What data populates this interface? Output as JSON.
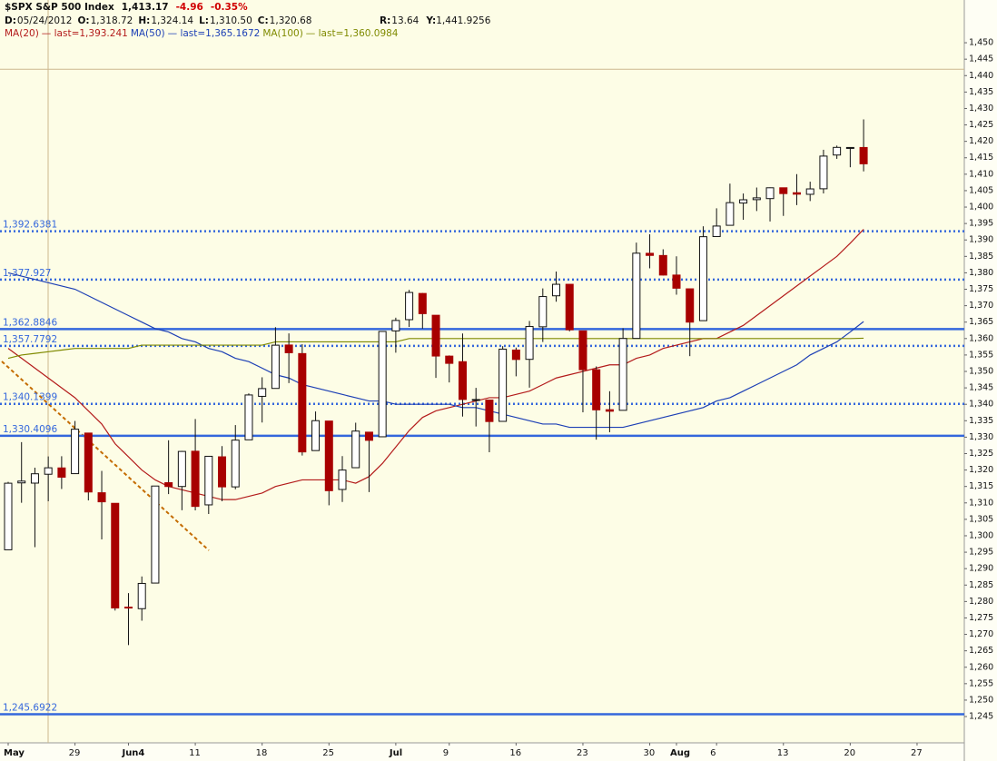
{
  "header": {
    "symbol": "$SPX S&P 500 Index",
    "last": "1,413.17",
    "change": "-4.96",
    "change_pct": "-0.35%",
    "fields": [
      {
        "key": "D:",
        "value": "05/24/2012"
      },
      {
        "key": "O:",
        "value": "1,318.72"
      },
      {
        "key": "H:",
        "value": "1,324.14"
      },
      {
        "key": "L:",
        "value": "1,310.50"
      },
      {
        "key": "C:",
        "value": "1,320.68"
      }
    ],
    "r": {
      "key": "R:",
      "value": "13.64"
    },
    "y": {
      "key": "Y:",
      "value": 1441.9256,
      "label": "1,441.9256"
    }
  },
  "chart_data": {
    "type": "candlestick",
    "categories": [
      "May",
      null,
      null,
      null,
      null,
      "29",
      null,
      null,
      null,
      "Jun4",
      null,
      null,
      null,
      null,
      "11",
      null,
      null,
      null,
      null,
      "18",
      null,
      null,
      null,
      null,
      "25",
      null,
      null,
      null,
      null,
      "Jul",
      null,
      null,
      null,
      "9",
      null,
      null,
      null,
      null,
      "16",
      null,
      null,
      null,
      null,
      "23",
      null,
      null,
      null,
      null,
      "30",
      null,
      "Aug",
      null,
      null,
      "6",
      null,
      null,
      null,
      null,
      "13",
      null,
      null,
      null,
      null,
      "20",
      null,
      null,
      null,
      null,
      "27",
      null,
      null,
      null
    ],
    "up_color": "#ffffff",
    "down_color": "#a80000",
    "open": [
      1295.73,
      1316.09,
      1316.02,
      1318.72,
      1320.64,
      1318.9,
      1331.25,
      1313.09,
      1309.87,
      1278.29,
      1277.82,
      1285.61,
      1316.15,
      1314.99,
      1325.72,
      1309.4,
      1324.02,
      1314.88,
      1329.19,
      1342.42,
      1344.83,
      1358.04,
      1355.43,
      1325.92,
      1334.9,
      1314.09,
      1320.71,
      1331.52,
      1330.12,
      1362.33,
      1365.75,
      1373.72,
      1367.09,
      1354.66,
      1352.96,
      1341.4,
      1341.29,
      1334.81,
      1356.5,
      1353.68,
      1363.58,
      1373.01,
      1376.51,
      1362.34,
      1350.52,
      1338.35,
      1338.17,
      1360.05,
      1385.94,
      1385.27,
      1379.32,
      1375.13,
      1365.45,
      1391.04,
      1394.46,
      1401.23,
      1402.26,
      1402.58,
      1405.87,
      1404.36,
      1403.89,
      1405.57,
      1415.84,
      1417.85,
      1418.13,
      null,
      null,
      null,
      null,
      null,
      null,
      null
    ],
    "high": [
      1316.39,
      1328.49,
      1320.71,
      1324.14,
      1324.2,
      1334.93,
      1331.25,
      1319.74,
      1309.87,
      1282.55,
      1287.62,
      1315.13,
      1329.05,
      1325.81,
      1335.52,
      1324.31,
      1327.28,
      1333.68,
      1343.32,
      1348.22,
      1363.46,
      1361.57,
      1358.27,
      1337.82,
      1334.9,
      1324.24,
      1334.4,
      1331.52,
      1362.17,
      1366.35,
      1374.81,
      1373.85,
      1367.09,
      1354.87,
      1361.54,
      1345.0,
      1341.29,
      1357.7,
      1357.26,
      1365.36,
      1375.26,
      1380.39,
      1376.51,
      1362.34,
      1351.53,
      1343.98,
      1363.13,
      1389.19,
      1391.74,
      1387.16,
      1385.03,
      1375.13,
      1394.16,
      1399.63,
      1407.14,
      1404.14,
      1405.95,
      1405.98,
      1405.87,
      1410.03,
      1407.73,
      1417.44,
      1418.71,
      1418.13,
      1426.68,
      null,
      null,
      null,
      null,
      null,
      null,
      null
    ],
    "low": [
      1295.73,
      1310.04,
      1296.53,
      1310.5,
      1314.23,
      1318.9,
      1310.76,
      1298.9,
      1277.25,
      1266.74,
      1274.16,
      1285.61,
      1312.68,
      1307.77,
      1307.73,
      1306.62,
      1310.51,
      1314.14,
      1329.19,
      1334.46,
      1344.83,
      1346.45,
      1324.41,
      1325.92,
      1309.27,
      1310.3,
      1320.71,
      1313.29,
      1330.12,
      1355.7,
      1363.53,
      1363.02,
      1348.03,
      1346.65,
      1336.27,
      1333.25,
      1325.41,
      1334.81,
      1348.51,
      1345.07,
      1358.96,
      1371.21,
      1362.19,
      1337.56,
      1329.24,
      1331.5,
      1338.17,
      1360.05,
      1381.37,
      1379.17,
      1373.35,
      1354.65,
      1365.45,
      1391.04,
      1394.46,
      1396.13,
      1398.8,
      1395.62,
      1397.32,
      1400.6,
      1401.83,
      1404.15,
      1414.67,
      1412.12,
      1410.86,
      null,
      null,
      null,
      null,
      null,
      null,
      null
    ],
    "close": [
      1315.99,
      1316.63,
      1318.86,
      1320.68,
      1317.82,
      1332.42,
      1313.32,
      1310.33,
      1278.04,
      1278.18,
      1285.5,
      1315.13,
      1314.99,
      1325.66,
      1308.93,
      1324.18,
      1314.88,
      1329.1,
      1342.84,
      1344.78,
      1357.98,
      1355.69,
      1325.51,
      1335.02,
      1313.72,
      1319.99,
      1331.85,
      1329.04,
      1362.16,
      1365.51,
      1374.02,
      1367.58,
      1354.68,
      1352.46,
      1341.47,
      1341.45,
      1334.76,
      1356.78,
      1353.64,
      1363.67,
      1372.78,
      1376.51,
      1362.66,
      1350.52,
      1338.31,
      1337.89,
      1360.02,
      1385.97,
      1385.3,
      1379.32,
      1375.32,
      1365.0,
      1390.99,
      1394.23,
      1401.35,
      1402.22,
      1402.8,
      1405.87,
      1404.11,
      1403.93,
      1405.53,
      1415.51,
      1418.16,
      1418.13,
      1413.17,
      null,
      null,
      null,
      null,
      null,
      null,
      null
    ],
    "lines": [
      {
        "name": "MA(20)",
        "legend": "— last=1,393.241",
        "color": "#b31b1b",
        "values": [
          1357,
          1354,
          1351,
          1348,
          1345,
          1342,
          1338,
          1334,
          1328,
          1324,
          1320,
          1317,
          1315,
          1314,
          1313,
          1312,
          1311,
          1311,
          1312,
          1313,
          1315,
          1316,
          1317,
          1317,
          1317,
          1317,
          1316,
          1318,
          1322,
          1327,
          1332,
          1336,
          1338,
          1339,
          1340,
          1341,
          1342,
          1342,
          1343,
          1344,
          1346,
          1348,
          1349,
          1350,
          1351,
          1352,
          1352,
          1354,
          1355,
          1357,
          1358,
          1359,
          1360,
          1360,
          1362,
          1364,
          1367,
          1370,
          1373,
          1376,
          1379,
          1382,
          1385,
          1389,
          1393.241,
          null,
          null,
          null,
          null,
          null,
          null,
          null
        ]
      },
      {
        "name": "MA(50)",
        "legend": "— last=1,365.1672",
        "color": "#1c3fb5",
        "values": [
          1380,
          1379,
          1378,
          1377,
          1376,
          1375,
          1373,
          1371,
          1369,
          1367,
          1365,
          1363,
          1362,
          1360,
          1359,
          1357,
          1356,
          1354,
          1353,
          1351,
          1349,
          1348,
          1346,
          1345,
          1344,
          1343,
          1342,
          1341,
          1341,
          1340,
          1340,
          1340,
          1340,
          1340,
          1339,
          1339,
          1338,
          1337,
          1336,
          1335,
          1334,
          1334,
          1333,
          1333,
          1333,
          1333,
          1333,
          1334,
          1335,
          1336,
          1337,
          1338,
          1339,
          1341,
          1342,
          1344,
          1346,
          1348,
          1350,
          1352,
          1355,
          1357,
          1359,
          1362,
          1365.1672,
          null,
          null,
          null,
          null,
          null,
          null,
          null
        ]
      },
      {
        "name": "MA(100)",
        "legend": "— last=1,360.0984",
        "color": "#7f8a00",
        "values": [
          1354,
          1355,
          1355.5,
          1356,
          1356.5,
          1357,
          1357,
          1357,
          1357,
          1357,
          1358,
          1358,
          1358,
          1358,
          1358,
          1358,
          1358,
          1358,
          1358,
          1358,
          1359,
          1359,
          1359,
          1359,
          1359,
          1359,
          1359,
          1359,
          1359,
          1359,
          1360,
          1360,
          1360,
          1360,
          1360,
          1360,
          1360,
          1360,
          1360,
          1360,
          1360,
          1360,
          1360,
          1360,
          1360,
          1360,
          1360,
          1360,
          1360,
          1360,
          1360,
          1360,
          1360,
          1360,
          1360,
          1360,
          1360,
          1360,
          1360,
          1360,
          1360,
          1360,
          1360,
          1360,
          1360.0984,
          null,
          null,
          null,
          null,
          null,
          null,
          null
        ]
      }
    ],
    "level_color": "#3467dc",
    "levels": [
      {
        "value": 1392.6381,
        "label": "1,392.6381",
        "style": "dotted"
      },
      {
        "value": 1377.927,
        "label": "1,377.927",
        "style": "dotted"
      },
      {
        "value": 1362.8846,
        "label": "1,362.8846",
        "style": "solid"
      },
      {
        "value": 1357.7792,
        "label": "1,357.7792",
        "style": "dotted"
      },
      {
        "value": 1340.1399,
        "label": "1,340.1399",
        "style": "dotted"
      },
      {
        "value": 1330.4096,
        "label": "1,330.4096",
        "style": "solid"
      },
      {
        "value": 1245.6922,
        "label": "1,245.6922",
        "style": "solid"
      }
    ],
    "ylim": [
      1237,
      1451.4
    ],
    "yticks": [
      {
        "value": 1450,
        "label": "1,450"
      },
      {
        "value": 1445,
        "label": "1,445"
      },
      {
        "value": 1440,
        "label": "1,440"
      },
      {
        "value": 1435,
        "label": "1,435"
      },
      {
        "value": 1430,
        "label": "1,430"
      },
      {
        "value": 1425,
        "label": "1,425"
      },
      {
        "value": 1420,
        "label": "1,420"
      },
      {
        "value": 1415,
        "label": "1,415"
      },
      {
        "value": 1410,
        "label": "1,410"
      },
      {
        "value": 1405,
        "label": "1,405"
      },
      {
        "value": 1400,
        "label": "1,400"
      },
      {
        "value": 1395,
        "label": "1,395"
      },
      {
        "value": 1390,
        "label": "1,390"
      },
      {
        "value": 1385,
        "label": "1,385"
      },
      {
        "value": 1380,
        "label": "1,380"
      },
      {
        "value": 1375,
        "label": "1,375"
      },
      {
        "value": 1370,
        "label": "1,370"
      },
      {
        "value": 1365,
        "label": "1,365"
      },
      {
        "value": 1360,
        "label": "1,360"
      },
      {
        "value": 1355,
        "label": "1,355"
      },
      {
        "value": 1350,
        "label": "1,350"
      },
      {
        "value": 1345,
        "label": "1,345"
      },
      {
        "value": 1340,
        "label": "1,340"
      },
      {
        "value": 1335,
        "label": "1,335"
      },
      {
        "value": 1330,
        "label": "1,330"
      },
      {
        "value": 1325,
        "label": "1,325"
      },
      {
        "value": 1320,
        "label": "1,320"
      },
      {
        "value": 1315,
        "label": "1,315"
      },
      {
        "value": 1310,
        "label": "1,310"
      },
      {
        "value": 1305,
        "label": "1,305"
      },
      {
        "value": 1300,
        "label": "1,300"
      },
      {
        "value": 1295,
        "label": "1,295"
      },
      {
        "value": 1290,
        "label": "1,290"
      },
      {
        "value": 1285,
        "label": "1,285"
      },
      {
        "value": 1280,
        "label": "1,280"
      },
      {
        "value": 1275,
        "label": "1,275"
      },
      {
        "value": 1270,
        "label": "1,270"
      },
      {
        "value": 1265,
        "label": "1,265"
      },
      {
        "value": 1260,
        "label": "1,260"
      },
      {
        "value": 1255,
        "label": "1,255"
      },
      {
        "value": 1250,
        "label": "1,250"
      },
      {
        "value": 1245,
        "label": "1,245"
      }
    ]
  }
}
